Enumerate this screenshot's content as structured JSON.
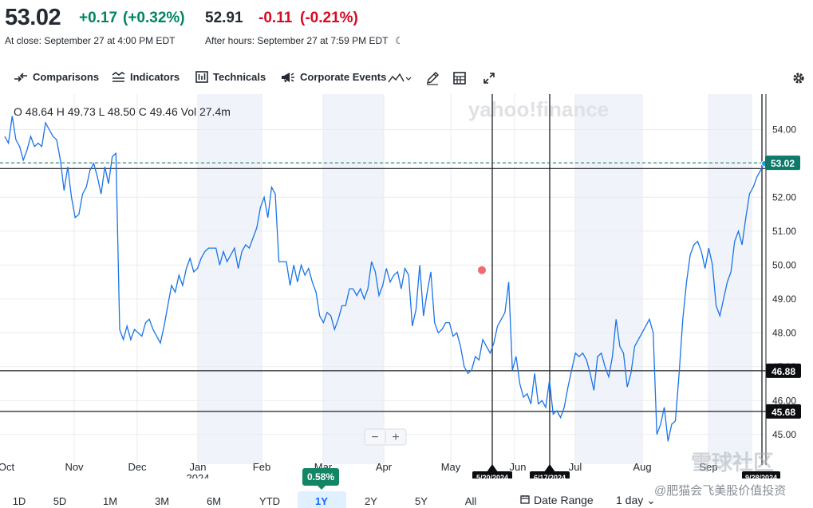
{
  "quote": {
    "price": "53.02",
    "change": "+0.17",
    "change_pct": "(+0.32%)",
    "close_label": "At close: September 27 at 4:00 PM EDT",
    "after_price": "52.91",
    "after_change": "-0.11",
    "after_change_pct": "(-0.21%)",
    "after_label": "After hours: September 27 at 7:59 PM EDT",
    "moon_icon": "☾"
  },
  "toolbar": {
    "comparisons": "Comparisons",
    "indicators": "Indicators",
    "technicals": "Technicals",
    "corporate_events": "Corporate Events",
    "icons": [
      "line-chart-type-icon",
      "draw-pencil-icon",
      "calculator-icon",
      "expand-icon",
      "settings-gear-icon"
    ]
  },
  "chart_data": {
    "type": "line",
    "ohlc": "O 48.64   H 49.73   L 48.50   C 49.46   Vol 27.4m",
    "watermark": "yahoo!finance",
    "ylim": [
      44.5,
      55.0
    ],
    "yticks": [
      "54.00",
      "53.00",
      "52.00",
      "51.00",
      "50.00",
      "49.00",
      "48.00",
      "47.00",
      "46.00",
      "45.00"
    ],
    "xlabels": [
      "Oct",
      "Nov",
      "Dec",
      "Jan",
      "Feb",
      "Mar",
      "Apr",
      "May",
      "Jun",
      "Jul",
      "Aug",
      "Sep"
    ],
    "year_label": "2024",
    "last_price": "53.02",
    "hlines": [
      {
        "value": 52.85,
        "label": ""
      },
      {
        "value": 46.88,
        "label": "46.88"
      },
      {
        "value": 45.68,
        "label": "45.68"
      }
    ],
    "vlines": [
      "5/20/2024",
      "6/17/2024"
    ],
    "current_date_label": "9/28/2024",
    "event_marker": {
      "date_index": 150,
      "value": 49.85
    },
    "zoom_minus": "−",
    "zoom_plus": "+",
    "series": [
      {
        "values": [
          53.8,
          53.6,
          54.4,
          53.7,
          53.5,
          53.1,
          53.4,
          53.8,
          53.5,
          53.6,
          53.5,
          54.2,
          54.0,
          53.8,
          53.7,
          53.1,
          52.2,
          52.9,
          52.0,
          51.4,
          51.5,
          52.1,
          52.3,
          52.8,
          53.0,
          52.6,
          52.1,
          52.9,
          52.4,
          53.2,
          53.3,
          48.1,
          47.8,
          48.2,
          47.8,
          48.1,
          48.0,
          47.9,
          48.3,
          48.4,
          48.1,
          47.9,
          47.7,
          48.2,
          48.8,
          49.4,
          49.2,
          49.7,
          49.4,
          49.9,
          50.2,
          49.8,
          49.9,
          50.2,
          50.4,
          50.5,
          50.5,
          50.5,
          50.0,
          50.4,
          50.1,
          50.3,
          50.5,
          49.9,
          50.4,
          50.6,
          50.5,
          50.8,
          51.1,
          51.7,
          52.0,
          51.4,
          52.3,
          52.1,
          50.1,
          50.1,
          50.1,
          49.4,
          50.0,
          49.5,
          50.0,
          49.7,
          49.9,
          49.5,
          49.2,
          48.5,
          48.3,
          48.6,
          48.5,
          48.1,
          48.4,
          48.8,
          48.8,
          49.3,
          49.3,
          49.1,
          49.3,
          49.0,
          49.3,
          50.1,
          49.8,
          49.1,
          49.4,
          49.9,
          49.5,
          49.7,
          49.8,
          49.3,
          49.9,
          49.7,
          48.2,
          48.7,
          50.0,
          48.5,
          49.2,
          49.8,
          48.3,
          48.0,
          48.1,
          48.3,
          48.3,
          47.9,
          48.0,
          47.6,
          47.0,
          46.8,
          46.9,
          47.3,
          47.2,
          47.8,
          47.6,
          47.4,
          47.7,
          48.2,
          48.4,
          48.6,
          49.5,
          46.9,
          47.3,
          46.5,
          46.1,
          46.2,
          45.9,
          46.8,
          45.9,
          46.0,
          45.8,
          46.6,
          45.6,
          45.7,
          45.5,
          45.8,
          46.4,
          46.9,
          47.4,
          47.3,
          47.4,
          47.2,
          46.8,
          46.3,
          47.3,
          47.4,
          47.0,
          46.7,
          47.3,
          48.4,
          47.6,
          47.4,
          46.4,
          46.8,
          47.6,
          47.8,
          48.0,
          48.2,
          48.4,
          48.0,
          45.0,
          45.3,
          45.8,
          44.8,
          45.3,
          45.4,
          46.8,
          48.4,
          49.5,
          50.3,
          50.6,
          50.7,
          50.4,
          49.9,
          50.5,
          50.0,
          48.8,
          48.5,
          49.0,
          49.5,
          49.8,
          50.7,
          51.0,
          50.6,
          51.4,
          52.1,
          52.3,
          52.6,
          52.8,
          53.0
        ]
      }
    ]
  },
  "ranges": [
    "1D",
    "5D",
    "1M",
    "3M",
    "6M",
    "YTD",
    "1Y",
    "2Y",
    "5Y",
    "All"
  ],
  "active_range": "1Y",
  "range_change": "0.58%",
  "date_range_label": "Date Range",
  "interval_label": "1 day",
  "watermark_text": "@肥猫会飞美股价值投资",
  "watermark_logo": "雪球社区"
}
